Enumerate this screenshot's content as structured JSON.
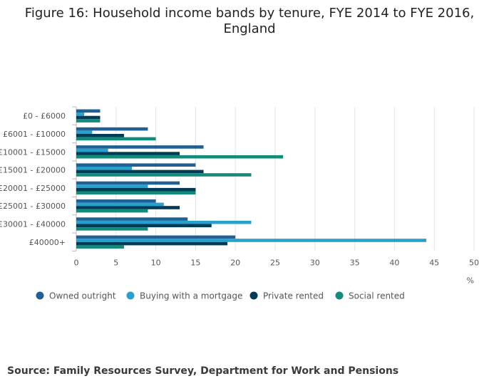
{
  "title_line1": "Figure 16: Household income bands by tenure, FYE 2014 to FYE 2016,",
  "title_line2": "England",
  "source": "Source: Family Resources Survey, Department for Work and Pensions",
  "chart_data": {
    "type": "bar",
    "orientation": "horizontal",
    "title": "Figure 16: Household income bands by tenure, FYE 2014 to FYE 2016, England",
    "xlabel": "%",
    "ylabel": "",
    "xlim": [
      0,
      50
    ],
    "xticks": [
      0,
      5,
      10,
      15,
      20,
      25,
      30,
      35,
      40,
      45,
      50
    ],
    "grid": true,
    "legend_position": "bottom-left",
    "categories": [
      "£0 - £6000",
      "£6001 - £10000",
      "£10001 - £15000",
      "£15001 - £20000",
      "£20001 - £25000",
      "£25001 - £30000",
      "£30001 - £40000",
      "£40000+"
    ],
    "series": [
      {
        "name": "Owned outright",
        "color": "#206095",
        "values": [
          3,
          9,
          16,
          15,
          13,
          10,
          14,
          20
        ]
      },
      {
        "name": "Buying with a mortgage",
        "color": "#27a0cc",
        "values": [
          1,
          2,
          4,
          7,
          9,
          11,
          22,
          44
        ]
      },
      {
        "name": "Private rented",
        "color": "#003c57",
        "values": [
          3,
          6,
          13,
          16,
          15,
          13,
          17,
          19
        ]
      },
      {
        "name": "Social rented",
        "color": "#118c7b",
        "values": [
          3,
          10,
          26,
          22,
          15,
          9,
          9,
          6
        ]
      }
    ]
  }
}
